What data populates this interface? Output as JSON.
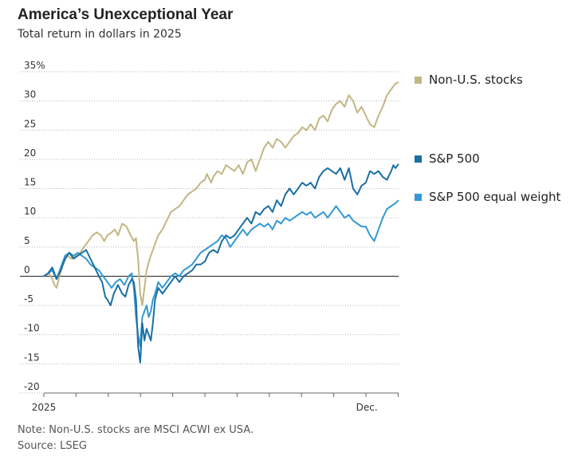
{
  "title": "America’s Unexceptional Year",
  "subtitle": "Total return in dollars in 2025",
  "note": "Note: Non-U.S. stocks are MSCI ACWI ex USA.",
  "source": "Source: LSEG",
  "chart_data": {
    "type": "line",
    "title": "America’s Unexceptional Year",
    "subtitle": "Total return in dollars in 2025",
    "ylim": [
      -20,
      35
    ],
    "xlim": [
      0,
      335
    ],
    "y_ticks": [
      -20,
      -15,
      -10,
      -5,
      0,
      5,
      10,
      15,
      20,
      25,
      30,
      35
    ],
    "y_tick_labels": [
      "-20",
      "-15",
      "-10",
      "-5",
      "0",
      "5",
      "10",
      "15",
      "20",
      "25",
      "30",
      "35%"
    ],
    "x_tick_labels": [
      {
        "x": 0,
        "label": "2025"
      },
      {
        "x": 305,
        "label": "Dec."
      }
    ],
    "grid": "horizontal dotted",
    "legend": "right",
    "series": [
      {
        "name": "Non-U.S. stocks",
        "color": "#c2b683",
        "points": [
          [
            0,
            0
          ],
          [
            5,
            0.5
          ],
          [
            8,
            -0.5
          ],
          [
            10,
            -1.5
          ],
          [
            12,
            -2
          ],
          [
            14,
            -0.5
          ],
          [
            18,
            2
          ],
          [
            22,
            3.5
          ],
          [
            26,
            3
          ],
          [
            30,
            3.5
          ],
          [
            34,
            4
          ],
          [
            38,
            5
          ],
          [
            42,
            6
          ],
          [
            46,
            7
          ],
          [
            50,
            7.5
          ],
          [
            54,
            7
          ],
          [
            57,
            6
          ],
          [
            60,
            7
          ],
          [
            64,
            7.5
          ],
          [
            67,
            8
          ],
          [
            70,
            7
          ],
          [
            74,
            9
          ],
          [
            78,
            8.5
          ],
          [
            82,
            7
          ],
          [
            85,
            6
          ],
          [
            87,
            6.5
          ],
          [
            89,
            3
          ],
          [
            91,
            -3
          ],
          [
            93,
            -5
          ],
          [
            95,
            -2
          ],
          [
            97,
            1
          ],
          [
            100,
            3
          ],
          [
            104,
            5
          ],
          [
            108,
            7
          ],
          [
            112,
            8
          ],
          [
            116,
            9.5
          ],
          [
            120,
            11
          ],
          [
            124,
            11.5
          ],
          [
            128,
            12
          ],
          [
            132,
            13
          ],
          [
            136,
            14
          ],
          [
            140,
            14.5
          ],
          [
            144,
            15
          ],
          [
            148,
            16
          ],
          [
            152,
            16.5
          ],
          [
            154,
            17.5
          ],
          [
            158,
            16
          ],
          [
            160,
            17
          ],
          [
            164,
            18
          ],
          [
            168,
            17.5
          ],
          [
            172,
            19
          ],
          [
            176,
            18.5
          ],
          [
            180,
            18
          ],
          [
            184,
            19
          ],
          [
            188,
            17.5
          ],
          [
            192,
            19.5
          ],
          [
            196,
            20
          ],
          [
            200,
            18
          ],
          [
            204,
            20
          ],
          [
            208,
            22
          ],
          [
            212,
            23
          ],
          [
            216,
            22
          ],
          [
            220,
            23.5
          ],
          [
            224,
            23
          ],
          [
            228,
            22
          ],
          [
            232,
            23
          ],
          [
            236,
            24
          ],
          [
            240,
            24.5
          ],
          [
            244,
            25.5
          ],
          [
            248,
            25
          ],
          [
            252,
            26
          ],
          [
            256,
            25
          ],
          [
            260,
            27
          ],
          [
            264,
            27.5
          ],
          [
            268,
            26.5
          ],
          [
            272,
            28.5
          ],
          [
            276,
            29.5
          ],
          [
            280,
            30
          ],
          [
            284,
            29
          ],
          [
            288,
            31
          ],
          [
            292,
            30
          ],
          [
            296,
            28
          ],
          [
            300,
            29
          ],
          [
            304,
            27.5
          ],
          [
            308,
            26
          ],
          [
            312,
            25.5
          ],
          [
            316,
            27.5
          ],
          [
            320,
            29
          ],
          [
            324,
            31
          ],
          [
            328,
            32
          ],
          [
            332,
            33
          ],
          [
            335,
            33.2
          ]
        ]
      },
      {
        "name": "S&P 500",
        "color": "#1a6fa3",
        "points": [
          [
            0,
            0
          ],
          [
            4,
            0.5
          ],
          [
            8,
            1.5
          ],
          [
            12,
            -0.5
          ],
          [
            16,
            1
          ],
          [
            20,
            3
          ],
          [
            24,
            4
          ],
          [
            28,
            3
          ],
          [
            32,
            3.5
          ],
          [
            36,
            4
          ],
          [
            40,
            4.5
          ],
          [
            44,
            3
          ],
          [
            48,
            1.5
          ],
          [
            52,
            0
          ],
          [
            55,
            -1
          ],
          [
            58,
            -3.5
          ],
          [
            60,
            -4
          ],
          [
            63,
            -5
          ],
          [
            66,
            -3
          ],
          [
            70,
            -1.5
          ],
          [
            74,
            -3
          ],
          [
            77,
            -3.5
          ],
          [
            80,
            -1.5
          ],
          [
            83,
            -0.5
          ],
          [
            85,
            -1
          ],
          [
            87,
            -4
          ],
          [
            89,
            -12
          ],
          [
            91,
            -14.8
          ],
          [
            93,
            -8
          ],
          [
            95,
            -11
          ],
          [
            97,
            -9
          ],
          [
            99,
            -10
          ],
          [
            101,
            -11
          ],
          [
            103,
            -8
          ],
          [
            105,
            -4
          ],
          [
            108,
            -2
          ],
          [
            112,
            -3
          ],
          [
            116,
            -2
          ],
          [
            120,
            -1
          ],
          [
            124,
            0
          ],
          [
            128,
            -1
          ],
          [
            132,
            0
          ],
          [
            136,
            0.5
          ],
          [
            140,
            1
          ],
          [
            144,
            2
          ],
          [
            148,
            2
          ],
          [
            152,
            2.5
          ],
          [
            156,
            4
          ],
          [
            160,
            4.5
          ],
          [
            164,
            4
          ],
          [
            168,
            6
          ],
          [
            172,
            7
          ],
          [
            176,
            6.5
          ],
          [
            180,
            7
          ],
          [
            184,
            8
          ],
          [
            188,
            9
          ],
          [
            192,
            10
          ],
          [
            196,
            9
          ],
          [
            200,
            11
          ],
          [
            204,
            10.5
          ],
          [
            208,
            11.5
          ],
          [
            212,
            12
          ],
          [
            216,
            11
          ],
          [
            220,
            13
          ],
          [
            224,
            12
          ],
          [
            228,
            14
          ],
          [
            232,
            15
          ],
          [
            236,
            14
          ],
          [
            240,
            15
          ],
          [
            244,
            16
          ],
          [
            248,
            15.5
          ],
          [
            252,
            16
          ],
          [
            256,
            15
          ],
          [
            260,
            17
          ],
          [
            264,
            18
          ],
          [
            268,
            18.5
          ],
          [
            272,
            18
          ],
          [
            276,
            17.5
          ],
          [
            280,
            18.5
          ],
          [
            284,
            16.5
          ],
          [
            288,
            18.5
          ],
          [
            292,
            15
          ],
          [
            296,
            14
          ],
          [
            300,
            15.5
          ],
          [
            304,
            16
          ],
          [
            308,
            18
          ],
          [
            312,
            17.5
          ],
          [
            316,
            18
          ],
          [
            320,
            17
          ],
          [
            324,
            16.5
          ],
          [
            328,
            18
          ],
          [
            330,
            19
          ],
          [
            332,
            18.5
          ],
          [
            335,
            19.2
          ]
        ]
      },
      {
        "name": "S&P 500 equal weight",
        "color": "#3399d4",
        "points": [
          [
            0,
            0
          ],
          [
            4,
            0.5
          ],
          [
            8,
            1
          ],
          [
            12,
            -0.5
          ],
          [
            16,
            1.5
          ],
          [
            20,
            3.5
          ],
          [
            24,
            4
          ],
          [
            28,
            3.5
          ],
          [
            32,
            4
          ],
          [
            36,
            3.5
          ],
          [
            40,
            3
          ],
          [
            44,
            2
          ],
          [
            48,
            1.5
          ],
          [
            52,
            1
          ],
          [
            56,
            0
          ],
          [
            60,
            -1
          ],
          [
            64,
            -2
          ],
          [
            68,
            -1
          ],
          [
            72,
            -0.5
          ],
          [
            76,
            -1.5
          ],
          [
            80,
            0
          ],
          [
            83,
            0.5
          ],
          [
            85,
            -2
          ],
          [
            87,
            -7
          ],
          [
            89,
            -10
          ],
          [
            91,
            -12
          ],
          [
            93,
            -7
          ],
          [
            95,
            -6
          ],
          [
            97,
            -5
          ],
          [
            99,
            -7
          ],
          [
            101,
            -6
          ],
          [
            103,
            -4
          ],
          [
            105,
            -3
          ],
          [
            108,
            -1
          ],
          [
            112,
            -2
          ],
          [
            116,
            -1
          ],
          [
            120,
            0
          ],
          [
            124,
            0.5
          ],
          [
            128,
            0
          ],
          [
            132,
            1
          ],
          [
            136,
            1.5
          ],
          [
            140,
            2
          ],
          [
            144,
            3
          ],
          [
            148,
            4
          ],
          [
            152,
            4.5
          ],
          [
            156,
            5
          ],
          [
            160,
            5.5
          ],
          [
            164,
            6
          ],
          [
            168,
            7
          ],
          [
            172,
            6.5
          ],
          [
            176,
            5
          ],
          [
            180,
            6
          ],
          [
            184,
            7
          ],
          [
            188,
            8
          ],
          [
            192,
            7
          ],
          [
            196,
            8
          ],
          [
            200,
            8.5
          ],
          [
            204,
            9
          ],
          [
            208,
            8.5
          ],
          [
            212,
            9
          ],
          [
            216,
            8
          ],
          [
            220,
            9.5
          ],
          [
            224,
            9
          ],
          [
            228,
            10
          ],
          [
            232,
            9.5
          ],
          [
            236,
            10
          ],
          [
            240,
            10.5
          ],
          [
            244,
            11
          ],
          [
            248,
            10.5
          ],
          [
            252,
            11
          ],
          [
            256,
            10
          ],
          [
            260,
            10.5
          ],
          [
            264,
            11
          ],
          [
            268,
            10
          ],
          [
            272,
            11
          ],
          [
            276,
            12
          ],
          [
            280,
            11
          ],
          [
            284,
            10
          ],
          [
            288,
            10.5
          ],
          [
            292,
            9.5
          ],
          [
            296,
            9
          ],
          [
            300,
            8.5
          ],
          [
            304,
            8.5
          ],
          [
            308,
            7
          ],
          [
            312,
            6
          ],
          [
            316,
            8
          ],
          [
            320,
            10
          ],
          [
            324,
            11.5
          ],
          [
            328,
            12
          ],
          [
            332,
            12.5
          ],
          [
            335,
            13
          ]
        ]
      }
    ]
  }
}
